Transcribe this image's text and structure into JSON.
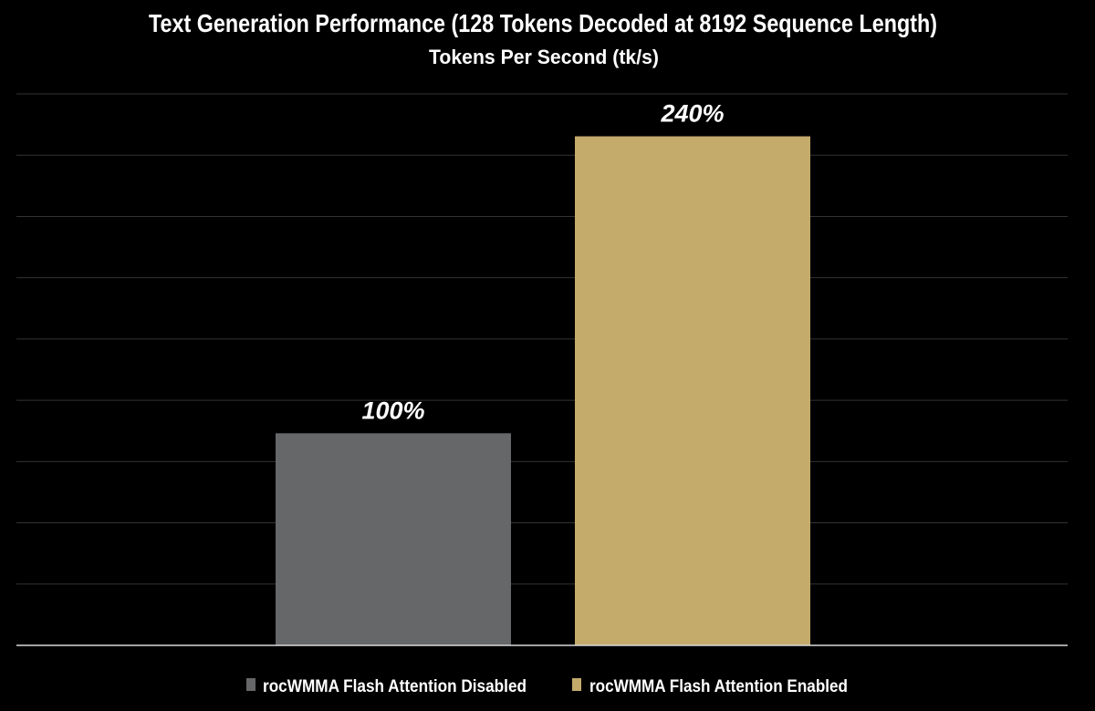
{
  "chart_data": {
    "type": "bar",
    "title": "Text Generation Performance (128 Tokens Decoded at 8192 Sequence Length)",
    "subtitle": "Tokens Per Second (tk/s)",
    "xlabel": "",
    "ylabel": "",
    "ylim": [
      0,
      260
    ],
    "grid": true,
    "y_tick_labels_shown": false,
    "legend_position": "bottom",
    "series": [
      {
        "name": "rocWMMA Flash Attention Disabled",
        "values": [
          100
        ],
        "data_label": "100%",
        "color": "#666769"
      },
      {
        "name": "rocWMMA Flash Attention Enabled",
        "values": [
          240
        ],
        "data_label": "240%",
        "color": "#c4ab6c"
      }
    ],
    "colors": {
      "background": "#000000",
      "grid": "#333333",
      "axis": "#d9d9d9",
      "text": "#ffffff"
    }
  }
}
